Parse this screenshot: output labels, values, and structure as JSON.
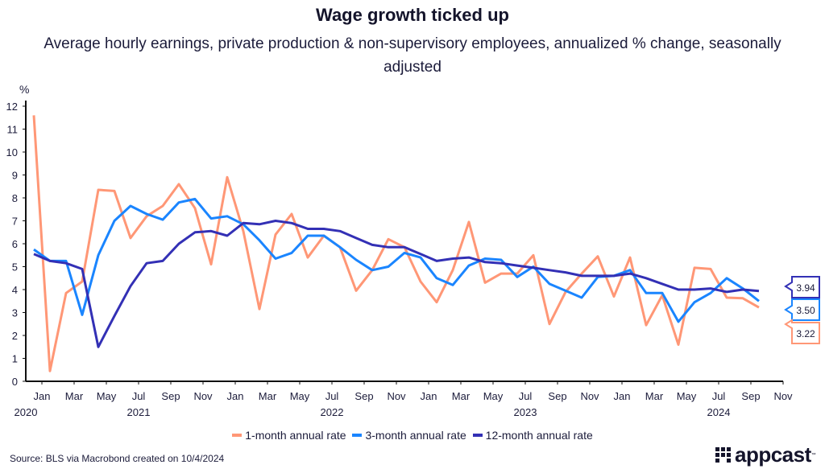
{
  "header": {
    "title": "Wage growth ticked up",
    "subtitle": "Average hourly earnings, private production & non-supervisory employees, annualized % change, seasonally adjusted"
  },
  "footer": {
    "source": "Source: BLS via Macrobond created on 10/4/2024",
    "logo_text": "appcast",
    "logo_tm": "™"
  },
  "chart_data": {
    "type": "line",
    "title": "Wage growth ticked up",
    "ylabel": "%",
    "xlabel": "",
    "ylim": [
      0,
      12
    ],
    "yticks": [
      0,
      1,
      2,
      3,
      4,
      5,
      6,
      7,
      8,
      9,
      10,
      11,
      12
    ],
    "x_start": "2020-12",
    "x_end": "2024-09",
    "xlim_months_from_2021_01": [
      -1.5,
      46.5
    ],
    "x_tick_labels": [
      "Jan",
      "Mar",
      "May",
      "Jul",
      "Sep",
      "Nov",
      "Jan",
      "Mar",
      "May",
      "Jul",
      "Sep",
      "Nov",
      "Jan",
      "Mar",
      "May",
      "Jul",
      "Sep",
      "Nov",
      "Jan",
      "Mar",
      "May",
      "Jul",
      "Sep",
      "Nov"
    ],
    "x_year_labels": [
      {
        "label": "2020",
        "month_index": -1.5
      },
      {
        "label": "2021",
        "month_index": 6
      },
      {
        "label": "2022",
        "month_index": 18
      },
      {
        "label": "2023",
        "month_index": 30
      },
      {
        "label": "2024",
        "month_index": 42
      }
    ],
    "grid": false,
    "legend_position": "bottom",
    "series": [
      {
        "name": "1-month annual rate",
        "color": "#ff9776",
        "values": [
          11.6,
          0.45,
          3.85,
          4.35,
          8.35,
          8.3,
          6.25,
          7.2,
          7.65,
          8.6,
          7.55,
          5.1,
          8.9,
          6.55,
          3.15,
          6.4,
          7.3,
          5.4,
          6.35,
          5.85,
          3.95,
          4.85,
          6.2,
          5.85,
          4.35,
          3.45,
          4.85,
          6.95,
          4.3,
          4.7,
          4.7,
          5.5,
          2.5,
          3.9,
          4.7,
          5.45,
          3.7,
          5.4,
          2.45,
          3.75,
          1.6,
          4.95,
          4.9,
          3.65,
          3.62,
          3.22
        ],
        "last_label": "3.22"
      },
      {
        "name": "3-month annual rate",
        "color": "#1a85ff",
        "values": [
          5.75,
          5.25,
          5.25,
          2.9,
          5.5,
          7.0,
          7.65,
          7.3,
          7.05,
          7.8,
          7.95,
          7.1,
          7.2,
          6.85,
          6.15,
          5.35,
          5.6,
          6.35,
          6.35,
          5.85,
          5.3,
          4.85,
          5.0,
          5.6,
          5.4,
          4.5,
          4.2,
          5.05,
          5.35,
          5.3,
          4.55,
          5.0,
          4.25,
          3.95,
          3.65,
          4.55,
          4.6,
          4.85,
          3.85,
          3.85,
          2.6,
          3.45,
          3.85,
          4.5,
          4.05,
          3.5
        ],
        "last_label": "3.50"
      },
      {
        "name": "12-month annual rate",
        "color": "#3330b5",
        "values": [
          5.55,
          5.25,
          5.15,
          4.9,
          1.5,
          2.85,
          4.15,
          5.15,
          5.25,
          6.0,
          6.5,
          6.55,
          6.35,
          6.9,
          6.85,
          7.0,
          6.9,
          6.65,
          6.65,
          6.55,
          6.25,
          5.95,
          5.85,
          5.85,
          5.55,
          5.25,
          5.35,
          5.4,
          5.2,
          5.15,
          5.05,
          4.95,
          4.85,
          4.75,
          4.6,
          4.6,
          4.6,
          4.7,
          4.5,
          4.25,
          4.0,
          4.0,
          4.05,
          3.9,
          4.0,
          3.94
        ],
        "last_label": "3.94"
      }
    ]
  }
}
